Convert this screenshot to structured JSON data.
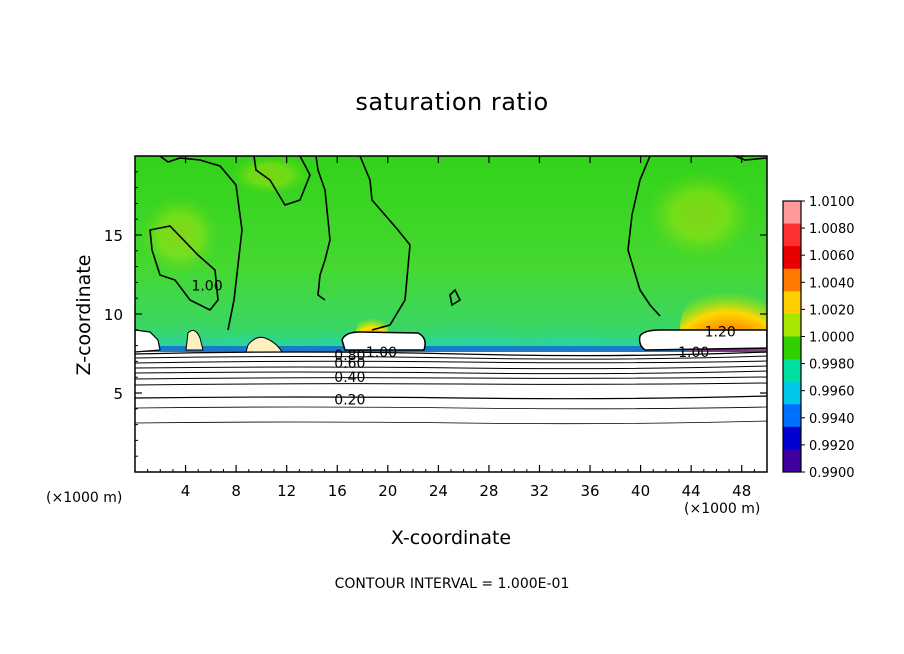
{
  "chart_data": {
    "type": "heatmap",
    "title": "saturation ratio",
    "xlabel": "X-coordinate",
    "ylabel": "Z-coordinate",
    "x_unit_left": "(×1000 m)",
    "x_unit_right": "(×1000 m)",
    "xlim": [
      0,
      50
    ],
    "ylim": [
      0,
      20
    ],
    "x_ticks": [
      "4",
      "8",
      "12",
      "16",
      "20",
      "24",
      "28",
      "32",
      "36",
      "40",
      "44",
      "48"
    ],
    "x_tick_values": [
      4,
      8,
      12,
      16,
      20,
      24,
      28,
      32,
      36,
      40,
      44,
      48
    ],
    "y_ticks": [
      "5",
      "10",
      "15"
    ],
    "y_tick_values": [
      5,
      10,
      15
    ],
    "colorbar": {
      "labels": [
        "1.0100",
        "1.0080",
        "1.0060",
        "1.0040",
        "1.0020",
        "1.0000",
        "0.9980",
        "0.9960",
        "0.9940",
        "0.9920",
        "0.9900"
      ],
      "colors": [
        "#ff9a9a",
        "#ff3030",
        "#e80000",
        "#ff7a00",
        "#ffcf00",
        "#a8e800",
        "#30d000",
        "#00e0a0",
        "#00c8e8",
        "#0070ff",
        "#0000d0",
        "#4000a0"
      ]
    },
    "contour_labels": [
      {
        "text": "1.00",
        "x": 5.7,
        "y": 11.8
      },
      {
        "text": "1.20",
        "x": 46.3,
        "y": 8.9
      },
      {
        "text": "1.00",
        "x": 44.2,
        "y": 7.6
      },
      {
        "text": "1.00",
        "x": 19.5,
        "y": 7.6
      },
      {
        "text": "0.80",
        "x": 17.0,
        "y": 7.4
      },
      {
        "text": "0.60",
        "x": 17.0,
        "y": 6.9
      },
      {
        "text": "0.40",
        "x": 17.0,
        "y": 6.0
      },
      {
        "text": "0.20",
        "x": 17.0,
        "y": 4.6
      }
    ],
    "contour_interval_text": "CONTOUR INTERVAL = 1.000E-01"
  }
}
